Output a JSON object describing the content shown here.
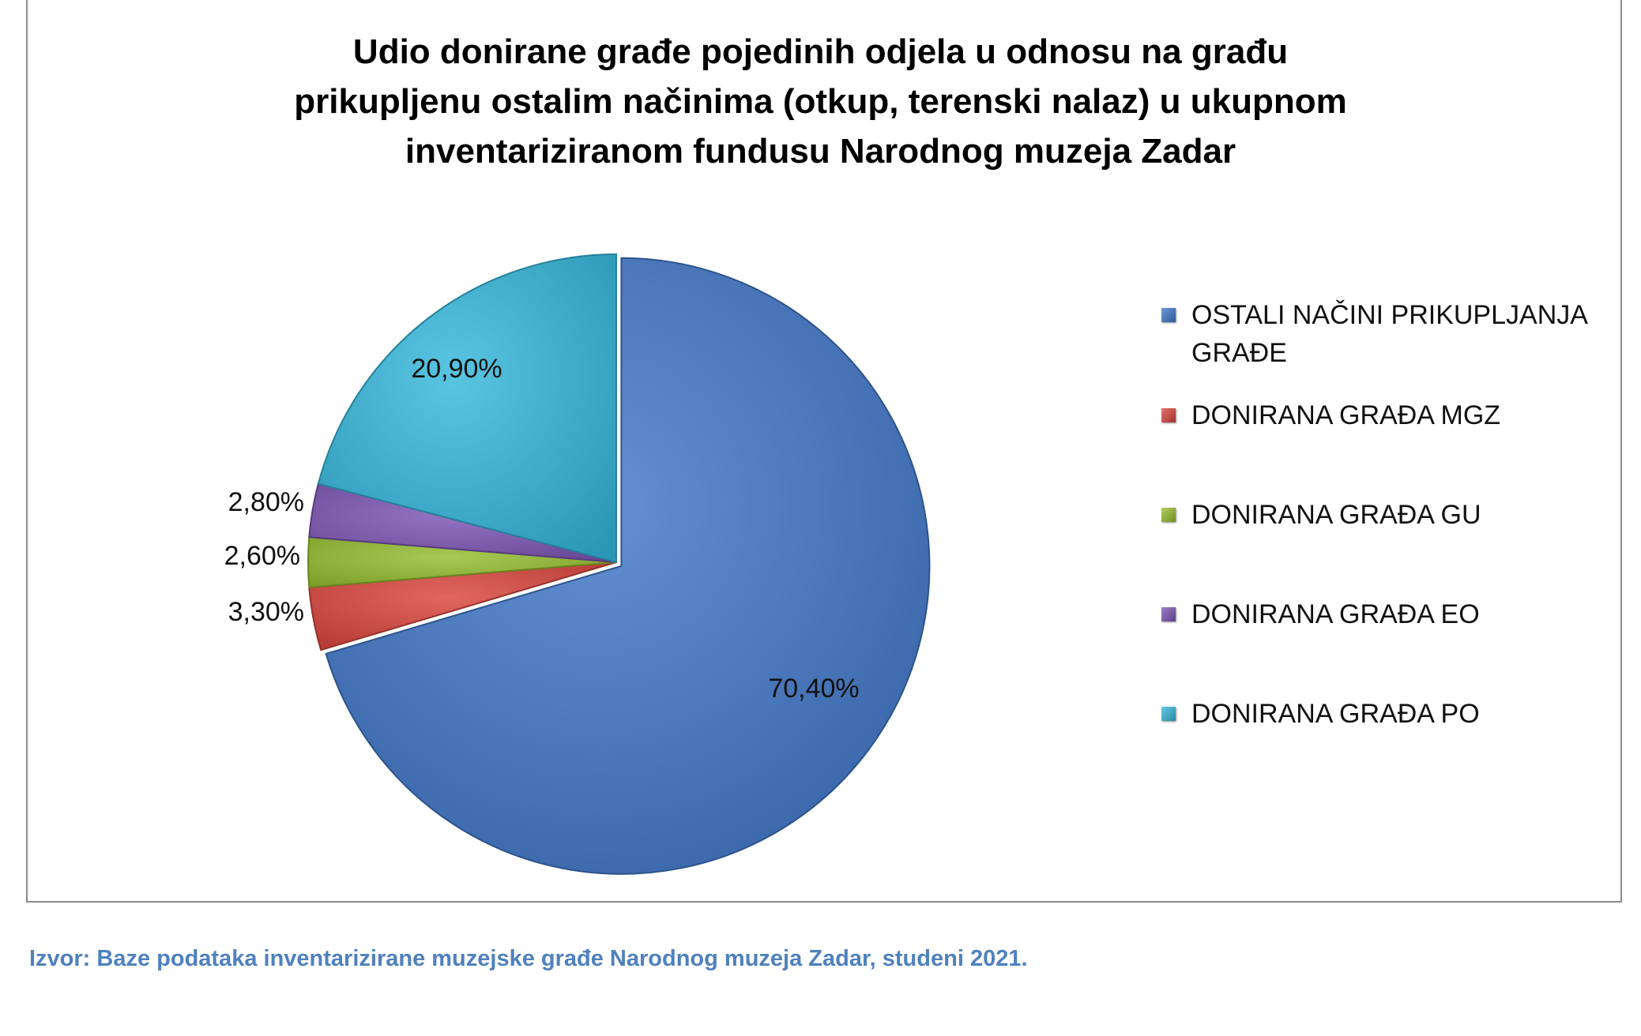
{
  "chart_data": {
    "type": "pie",
    "title_lines": [
      "Udio donirane građe pojedinih odjela u odnosu na građu",
      "prikupljenu ostalim načinima (otkup, terenski nalaz) u ukupnom",
      "inventariziranom fundusu Narodnog muzeja Zadar"
    ],
    "legend_position": "right",
    "slices": [
      {
        "name": "OSTALI NAČINI PRIKUPLJANJA GRAĐE",
        "value": 70.4,
        "label": "70,40%",
        "color": "#3f78c8"
      },
      {
        "name": "DONIRANA GRAĐA MGZ",
        "value": 3.3,
        "label": "3,30%",
        "color": "#d9443c"
      },
      {
        "name": "DONIRANA GRAĐA GU",
        "value": 2.6,
        "label": "2,60%",
        "color": "#95be2e"
      },
      {
        "name": "DONIRANA GRAĐA EO",
        "value": 2.8,
        "label": "2,80%",
        "color": "#7d55b5"
      },
      {
        "name": "DONIRANA GRAĐA PO",
        "value": 20.9,
        "label": "20,90%",
        "color": "#35b8dc"
      }
    ]
  },
  "source_note": "Izvor: Baze podataka inventarizirane muzejske građe Narodnog muzeja Zadar, studeni 2021."
}
